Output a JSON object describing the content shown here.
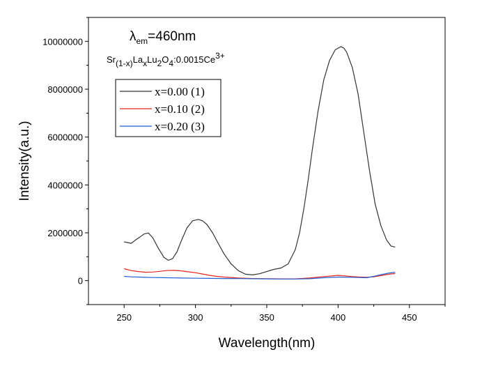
{
  "chart_data": {
    "type": "line",
    "xlabel": "Wavelength(nm)",
    "ylabel": "Intensity(a.u.)",
    "xlim": [
      225,
      475
    ],
    "ylim": [
      -1000000,
      11000000
    ],
    "xticks": [
      250,
      300,
      350,
      400,
      450
    ],
    "yticks": [
      0,
      2000000,
      4000000,
      6000000,
      8000000,
      10000000
    ],
    "xtick_labels": [
      "250",
      "300",
      "350",
      "400",
      "450"
    ],
    "ytick_labels": [
      "0",
      "2000000",
      "4000000",
      "6000000",
      "8000000",
      "10000000"
    ],
    "grid": false,
    "legend_position": "top-left",
    "annotation": {
      "lambda_symbol": "λ",
      "lambda_subscript": "em",
      "lambda_value": "=460nm",
      "formula": [
        {
          "t": "Sr",
          "s": "normal"
        },
        {
          "t": "(1-x)",
          "s": "sub"
        },
        {
          "t": "La",
          "s": "normal"
        },
        {
          "t": "x",
          "s": "sub"
        },
        {
          "t": "Lu",
          "s": "normal"
        },
        {
          "t": "2",
          "s": "sub"
        },
        {
          "t": "O",
          "s": "normal"
        },
        {
          "t": "4",
          "s": "sub"
        },
        {
          "t": ":0.0015Ce",
          "s": "normal"
        },
        {
          "t": "3+",
          "s": "sup"
        }
      ]
    },
    "series": [
      {
        "name": "x=0.00 (1)",
        "color": "#333333",
        "x": [
          250,
          255,
          258,
          261,
          264,
          267,
          270,
          274,
          278,
          281,
          284,
          287,
          290,
          294,
          298,
          302,
          305,
          308,
          312,
          316,
          320,
          325,
          330,
          335,
          340,
          345,
          350,
          355,
          360,
          365,
          370,
          373,
          376,
          379,
          382,
          386,
          390,
          394,
          398,
          402,
          404,
          406,
          410,
          414,
          418,
          422,
          426,
          430,
          434,
          437,
          440
        ],
        "y": [
          1620000,
          1560000,
          1700000,
          1820000,
          1950000,
          1990000,
          1800000,
          1350000,
          970000,
          850000,
          920000,
          1200000,
          1650000,
          2200000,
          2500000,
          2560000,
          2500000,
          2350000,
          2000000,
          1550000,
          1120000,
          700000,
          420000,
          270000,
          240000,
          290000,
          380000,
          470000,
          530000,
          700000,
          1300000,
          2000000,
          3000000,
          4200000,
          5500000,
          7100000,
          8400000,
          9200000,
          9650000,
          9780000,
          9720000,
          9550000,
          8900000,
          7800000,
          6200000,
          4600000,
          3200000,
          2300000,
          1700000,
          1450000,
          1400000
        ]
      },
      {
        "name": "x=0.10 (2)",
        "color": "#e8231c",
        "x": [
          250,
          255,
          260,
          265,
          270,
          275,
          280,
          285,
          290,
          295,
          300,
          305,
          310,
          315,
          320,
          330,
          340,
          350,
          360,
          370,
          380,
          390,
          400,
          405,
          410,
          415,
          420,
          425,
          430,
          435,
          440
        ],
        "y": [
          500000,
          420000,
          380000,
          350000,
          360000,
          390000,
          420000,
          430000,
          410000,
          370000,
          330000,
          280000,
          220000,
          180000,
          150000,
          110000,
          90000,
          80000,
          75000,
          75000,
          110000,
          170000,
          220000,
          200000,
          170000,
          150000,
          140000,
          160000,
          210000,
          260000,
          300000
        ]
      },
      {
        "name": "x=0.20 (3)",
        "color": "#1f5fd6",
        "x": [
          250,
          255,
          260,
          265,
          270,
          280,
          290,
          300,
          310,
          320,
          330,
          340,
          350,
          360,
          370,
          380,
          390,
          400,
          410,
          420,
          425,
          430,
          435,
          440
        ],
        "y": [
          180000,
          160000,
          150000,
          140000,
          130000,
          120000,
          110000,
          100000,
          95000,
          90000,
          85000,
          80000,
          75000,
          70000,
          70000,
          80000,
          120000,
          150000,
          140000,
          120000,
          180000,
          250000,
          310000,
          350000
        ]
      }
    ]
  }
}
